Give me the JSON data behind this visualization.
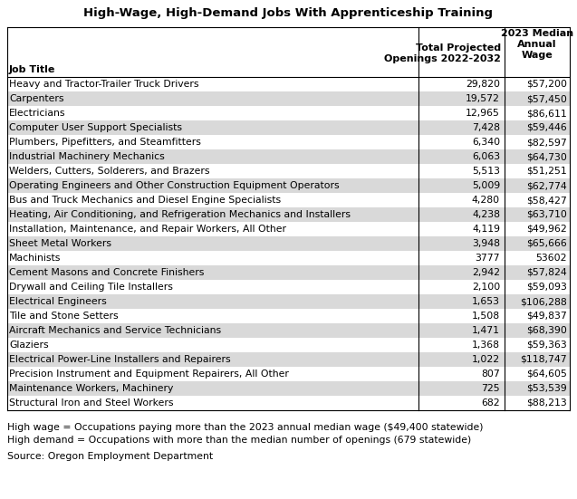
{
  "title": "High-Wage, High-Demand Jobs With Apprenticeship Training",
  "rows": [
    [
      "Heavy and Tractor-Trailer Truck Drivers",
      "29,820",
      "$57,200"
    ],
    [
      "Carpenters",
      "19,572",
      "$57,450"
    ],
    [
      "Electricians",
      "12,965",
      "$86,611"
    ],
    [
      "Computer User Support Specialists",
      "7,428",
      "$59,446"
    ],
    [
      "Plumbers, Pipefitters, and Steamfitters",
      "6,340",
      "$82,597"
    ],
    [
      "Industrial Machinery Mechanics",
      "6,063",
      "$64,730"
    ],
    [
      "Welders, Cutters, Solderers, and Brazers",
      "5,513",
      "$51,251"
    ],
    [
      "Operating Engineers and Other Construction Equipment Operators",
      "5,009",
      "$62,774"
    ],
    [
      "Bus and Truck Mechanics and Diesel Engine Specialists",
      "4,280",
      "$58,427"
    ],
    [
      "Heating, Air Conditioning, and Refrigeration Mechanics and Installers",
      "4,238",
      "$63,710"
    ],
    [
      "Installation, Maintenance, and Repair Workers, All Other",
      "4,119",
      "$49,962"
    ],
    [
      "Sheet Metal Workers",
      "3,948",
      "$65,666"
    ],
    [
      "Machinists",
      "3777",
      "53602"
    ],
    [
      "Cement Masons and Concrete Finishers",
      "2,942",
      "$57,824"
    ],
    [
      "Drywall and Ceiling Tile Installers",
      "2,100",
      "$59,093"
    ],
    [
      "Electrical Engineers",
      "1,653",
      "$106,288"
    ],
    [
      "Tile and Stone Setters",
      "1,508",
      "$49,837"
    ],
    [
      "Aircraft Mechanics and Service Technicians",
      "1,471",
      "$68,390"
    ],
    [
      "Glaziers",
      "1,368",
      "$59,363"
    ],
    [
      "Electrical Power-Line Installers and Repairers",
      "1,022",
      "$118,747"
    ],
    [
      "Precision Instrument and Equipment Repairers, All Other",
      "807",
      "$64,605"
    ],
    [
      "Maintenance Workers, Machinery",
      "725",
      "$53,539"
    ],
    [
      "Structural Iron and Steel Workers",
      "682",
      "$88,213"
    ]
  ],
  "footnotes": [
    "High wage = Occupations paying more than the 2023 annual median wage ($49,400 statewide)",
    "High demand = Occupations with more than the median number of openings (679 statewide)"
  ],
  "source": "Source: Oregon Employment Department",
  "row_colors": [
    "#ffffff",
    "#d9d9d9"
  ],
  "title_fontsize": 9.5,
  "body_fontsize": 7.8,
  "header_fontsize": 8.0
}
